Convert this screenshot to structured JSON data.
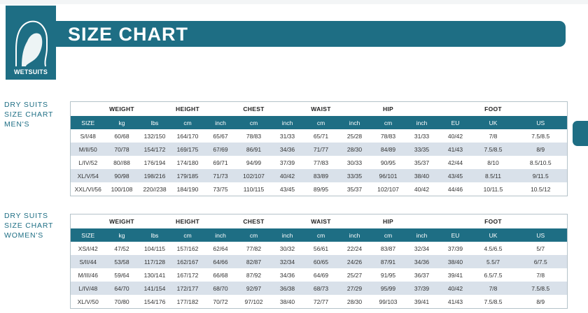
{
  "header": {
    "badge_label": "WETSUITS",
    "title": "SIZE CHART"
  },
  "colors": {
    "accent": "#1e6e84",
    "row_shade": "#d9e1ea"
  },
  "icons": {
    "badge": "hooded-head-icon"
  },
  "mens": {
    "label_lines": [
      "DRY SUITS",
      "SIZE CHART",
      "MEN'S"
    ],
    "group_headers": [
      "",
      "WEIGHT",
      "",
      "HEIGHT",
      "",
      "CHEST",
      "",
      "WAIST",
      "",
      "HIP",
      "",
      "",
      "FOOT",
      ""
    ],
    "unit_headers": [
      "SIZE",
      "kg",
      "lbs",
      "cm",
      "inch",
      "cm",
      "inch",
      "cm",
      "inch",
      "cm",
      "inch",
      "EU",
      "UK",
      "US"
    ],
    "rows": [
      [
        "S/I/48",
        "60/68",
        "132/150",
        "164/170",
        "65/67",
        "78/83",
        "31/33",
        "65/71",
        "25/28",
        "78/83",
        "31/33",
        "40/42",
        "7/8",
        "7.5/8.5"
      ],
      [
        "M/II/50",
        "70/78",
        "154/172",
        "169/175",
        "67/69",
        "86/91",
        "34/36",
        "71/77",
        "28/30",
        "84/89",
        "33/35",
        "41/43",
        "7.5/8.5",
        "8/9"
      ],
      [
        "L/IV/52",
        "80//88",
        "176/194",
        "174/180",
        "69/71",
        "94/99",
        "37/39",
        "77/83",
        "30/33",
        "90/95",
        "35/37",
        "42/44",
        "8/10",
        "8.5/10.5"
      ],
      [
        "XL/V/54",
        "90/98",
        "198/216",
        "179/185",
        "71/73",
        "102/107",
        "40/42",
        "83/89",
        "33/35",
        "96/101",
        "38/40",
        "43/45",
        "8.5/11",
        "9/11.5"
      ],
      [
        "XXL/VI/56",
        "100/108",
        "220//238",
        "184/190",
        "73/75",
        "110/115",
        "43/45",
        "89/95",
        "35/37",
        "102/107",
        "40/42",
        "44/46",
        "10/11.5",
        "10.5/12"
      ]
    ]
  },
  "womens": {
    "label_lines": [
      "DRY SUITS",
      "SIZE CHART",
      "WOMEN'S"
    ],
    "group_headers": [
      "",
      "WEIGHT",
      "",
      "HEIGHT",
      "",
      "CHEST",
      "",
      "WAIST",
      "",
      "HIP",
      "",
      "",
      "FOOT",
      ""
    ],
    "unit_headers": [
      "SIZE",
      "kg",
      "lbs",
      "cm",
      "inch",
      "cm",
      "inch",
      "cm",
      "inch",
      "cm",
      "inch",
      "EU",
      "UK",
      "US"
    ],
    "rows": [
      [
        "XS/I/42",
        "47/52",
        "104/115",
        "157/162",
        "62/64",
        "77/82",
        "30/32",
        "56/61",
        "22/24",
        "83/87",
        "32/34",
        "37/39",
        "4.5/6.5",
        "5/7"
      ],
      [
        "S/II/44",
        "53/58",
        "117/128",
        "162/167",
        "64/66",
        "82/87",
        "32/34",
        "60/65",
        "24/26",
        "87/91",
        "34/36",
        "38/40",
        "5.5/7",
        "6/7.5"
      ],
      [
        "M/III/46",
        "59/64",
        "130/141",
        "167/172",
        "66/68",
        "87/92",
        "34/36",
        "64/69",
        "25/27",
        "91/95",
        "36/37",
        "39/41",
        "6.5/7.5",
        "7/8"
      ],
      [
        "L/IV/48",
        "64/70",
        "141/154",
        "172/177",
        "68/70",
        "92/97",
        "36/38",
        "68/73",
        "27/29",
        "95/99",
        "37/39",
        "40/42",
        "7/8",
        "7.5/8.5"
      ],
      [
        "XL/V/50",
        "70/80",
        "154/176",
        "177/182",
        "70/72",
        "97/102",
        "38/40",
        "72/77",
        "28/30",
        "99/103",
        "39/41",
        "41/43",
        "7.5/8.5",
        "8/9"
      ]
    ]
  }
}
